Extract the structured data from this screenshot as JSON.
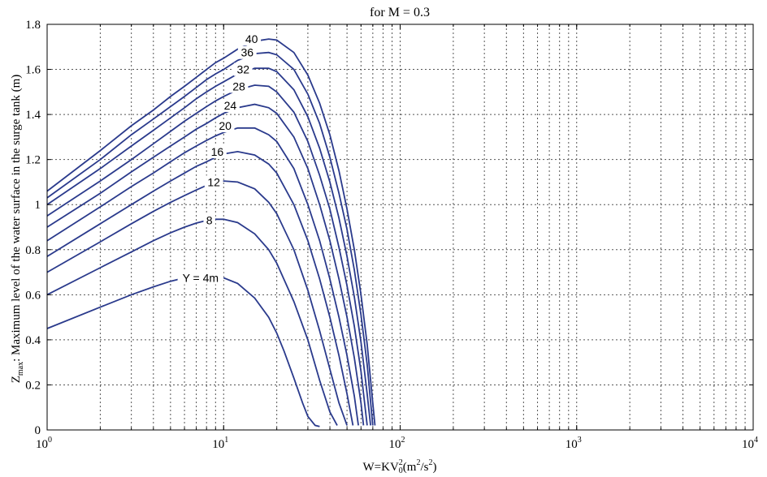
{
  "chart_data": {
    "type": "line",
    "title": "for M = 0.3",
    "xlabel": {
      "base": "W=KV",
      "sub": "0",
      "sup": "2",
      "unit_open": "(m",
      "unit_sup1": "2",
      "unit_mid": "/s",
      "unit_sup2": "2",
      "unit_close": ")"
    },
    "ylabel": {
      "base": "Z",
      "sub": "max",
      "rest": ": Maximum level of the water surface in the surge tank (m)"
    },
    "x_scale": "log",
    "xlim": [
      1,
      10000
    ],
    "ylim": [
      0,
      1.8
    ],
    "grid": true,
    "grid_style": "dotted",
    "line_color": "#2a3a8c",
    "x_ticks": [
      {
        "value": 1,
        "base": "10",
        "exp": "0"
      },
      {
        "value": 10,
        "base": "10",
        "exp": "1"
      },
      {
        "value": 100,
        "base": "10",
        "exp": "2"
      },
      {
        "value": 1000,
        "base": "10",
        "exp": "3"
      },
      {
        "value": 10000,
        "base": "10",
        "exp": "4"
      }
    ],
    "y_ticks": [
      "0",
      "0.2",
      "0.4",
      "0.6",
      "0.8",
      "1",
      "1.2",
      "1.4",
      "1.6",
      "1.8"
    ],
    "series": [
      {
        "name": "Y = 4m",
        "label": "Y = 4m",
        "label_at": [
          7.4,
          0.675
        ],
        "x": [
          1,
          2,
          3,
          4,
          5,
          6,
          7,
          8,
          9,
          10,
          12,
          15,
          18,
          20,
          22,
          25,
          28,
          30,
          33,
          35
        ],
        "y": [
          0.45,
          0.545,
          0.6,
          0.635,
          0.66,
          0.675,
          0.68,
          0.683,
          0.682,
          0.675,
          0.65,
          0.585,
          0.5,
          0.43,
          0.35,
          0.23,
          0.12,
          0.06,
          0.02,
          0.015
        ]
      },
      {
        "name": "8",
        "label": "8",
        "label_at": [
          8.3,
          0.93
        ],
        "x": [
          1,
          2,
          3,
          4,
          5,
          6,
          7,
          8,
          9,
          10,
          12,
          15,
          18,
          20,
          25,
          30,
          35,
          40,
          44
        ],
        "y": [
          0.6,
          0.72,
          0.79,
          0.84,
          0.875,
          0.9,
          0.918,
          0.93,
          0.935,
          0.935,
          0.92,
          0.87,
          0.8,
          0.74,
          0.57,
          0.4,
          0.22,
          0.08,
          0.02
        ]
      },
      {
        "name": "12",
        "label": "12",
        "label_at": [
          8.8,
          1.1
        ],
        "x": [
          1,
          2,
          3,
          4,
          5,
          6,
          7,
          8,
          9,
          10,
          12,
          15,
          18,
          20,
          25,
          30,
          35,
          40,
          45,
          50
        ],
        "y": [
          0.7,
          0.835,
          0.915,
          0.97,
          1.01,
          1.04,
          1.065,
          1.085,
          1.1,
          1.105,
          1.1,
          1.07,
          1.01,
          0.96,
          0.8,
          0.62,
          0.44,
          0.27,
          0.12,
          0.02
        ]
      },
      {
        "name": "16",
        "label": "16",
        "label_at": [
          9.2,
          1.235
        ],
        "x": [
          1,
          2,
          3,
          4,
          5,
          6,
          7,
          8,
          9,
          10,
          12,
          15,
          18,
          20,
          25,
          30,
          35,
          40,
          45,
          50,
          54
        ],
        "y": [
          0.77,
          0.915,
          1.0,
          1.06,
          1.105,
          1.14,
          1.17,
          1.19,
          1.21,
          1.225,
          1.235,
          1.22,
          1.18,
          1.14,
          1.0,
          0.84,
          0.67,
          0.5,
          0.33,
          0.16,
          0.02
        ]
      },
      {
        "name": "20",
        "label": "20",
        "label_at": [
          10.2,
          1.35
        ],
        "x": [
          1,
          2,
          3,
          4,
          5,
          6,
          7,
          8,
          9,
          10,
          12,
          15,
          18,
          20,
          25,
          30,
          35,
          40,
          45,
          50,
          55,
          58
        ],
        "y": [
          0.84,
          0.99,
          1.08,
          1.14,
          1.19,
          1.23,
          1.26,
          1.285,
          1.305,
          1.32,
          1.34,
          1.34,
          1.31,
          1.28,
          1.16,
          1.0,
          0.84,
          0.67,
          0.5,
          0.33,
          0.15,
          0.02
        ]
      },
      {
        "name": "24",
        "label": "24",
        "label_at": [
          10.9,
          1.44
        ],
        "x": [
          1,
          2,
          3,
          4,
          5,
          6,
          7,
          8,
          9,
          10,
          12,
          15,
          18,
          20,
          25,
          30,
          35,
          40,
          45,
          50,
          55,
          60,
          62
        ],
        "y": [
          0.9,
          1.05,
          1.145,
          1.21,
          1.26,
          1.3,
          1.335,
          1.36,
          1.385,
          1.405,
          1.43,
          1.445,
          1.43,
          1.405,
          1.3,
          1.16,
          1.0,
          0.84,
          0.67,
          0.5,
          0.32,
          0.12,
          0.02
        ]
      },
      {
        "name": "28",
        "label": "28",
        "label_at": [
          12.2,
          1.525
        ],
        "x": [
          1,
          2,
          3,
          4,
          5,
          6,
          7,
          8,
          9,
          10,
          12,
          15,
          18,
          20,
          25,
          30,
          35,
          40,
          45,
          50,
          55,
          60,
          65
        ],
        "y": [
          0.95,
          1.105,
          1.2,
          1.27,
          1.325,
          1.37,
          1.405,
          1.435,
          1.46,
          1.48,
          1.51,
          1.53,
          1.525,
          1.5,
          1.41,
          1.28,
          1.13,
          0.98,
          0.81,
          0.64,
          0.46,
          0.26,
          0.02
        ]
      },
      {
        "name": "32",
        "label": "32",
        "label_at": [
          12.9,
          1.6
        ],
        "x": [
          1,
          2,
          3,
          4,
          5,
          6,
          7,
          8,
          9,
          10,
          12,
          15,
          18,
          20,
          25,
          30,
          35,
          40,
          45,
          50,
          55,
          60,
          65,
          68
        ],
        "y": [
          1.0,
          1.16,
          1.26,
          1.33,
          1.385,
          1.43,
          1.47,
          1.5,
          1.525,
          1.545,
          1.58,
          1.605,
          1.605,
          1.59,
          1.51,
          1.39,
          1.25,
          1.1,
          0.94,
          0.77,
          0.59,
          0.39,
          0.16,
          0.02
        ]
      },
      {
        "name": "36",
        "label": "36",
        "label_at": [
          13.6,
          1.675
        ],
        "x": [
          1,
          2,
          3,
          4,
          5,
          6,
          7,
          8,
          9,
          10,
          12,
          15,
          18,
          20,
          25,
          30,
          35,
          40,
          45,
          50,
          55,
          60,
          65,
          70
        ],
        "y": [
          1.03,
          1.2,
          1.31,
          1.38,
          1.435,
          1.48,
          1.52,
          1.555,
          1.58,
          1.6,
          1.64,
          1.67,
          1.675,
          1.665,
          1.6,
          1.49,
          1.36,
          1.21,
          1.05,
          0.89,
          0.71,
          0.51,
          0.29,
          0.02
        ]
      },
      {
        "name": "40",
        "label": "40",
        "label_at": [
          14.4,
          1.735
        ],
        "x": [
          1,
          2,
          3,
          4,
          5,
          6,
          7,
          8,
          9,
          10,
          12,
          15,
          18,
          20,
          25,
          30,
          35,
          40,
          45,
          50,
          55,
          60,
          65,
          70,
          72
        ],
        "y": [
          1.06,
          1.24,
          1.35,
          1.42,
          1.48,
          1.525,
          1.565,
          1.6,
          1.63,
          1.65,
          1.69,
          1.725,
          1.735,
          1.73,
          1.675,
          1.575,
          1.45,
          1.31,
          1.15,
          0.98,
          0.8,
          0.6,
          0.38,
          0.12,
          0.02
        ]
      }
    ]
  }
}
